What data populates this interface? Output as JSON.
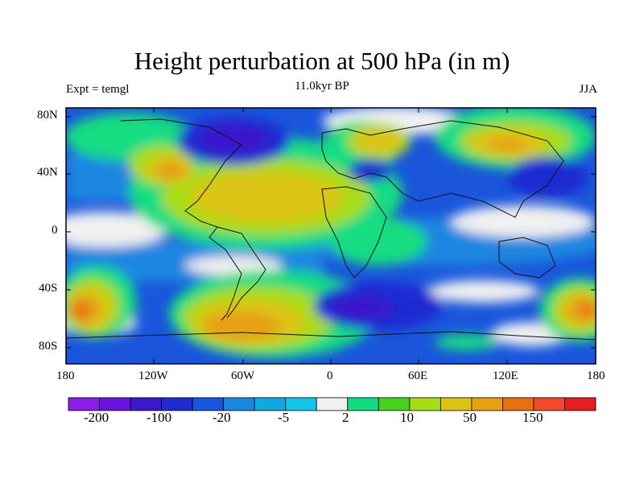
{
  "title": "Height perturbation at 500 hPa (in m)",
  "left_label": "Expt = temgl",
  "center_label": "11.0kyr BP",
  "right_label": "JJA",
  "lat_labels": [
    "80N",
    "40N",
    "0",
    "40S",
    "80S"
  ],
  "lon_labels": [
    "180",
    "120W",
    "60W",
    "0",
    "60E",
    "120E",
    "180"
  ],
  "colorbar": {
    "colors": [
      "#8a1ee6",
      "#6a14e0",
      "#3a18cc",
      "#1e2ad2",
      "#1a56dc",
      "#1b86e0",
      "#10a8e0",
      "#14c4e6",
      "#f0f0f0",
      "#12dc82",
      "#46d21e",
      "#a8dc14",
      "#dcc414",
      "#e6a014",
      "#e67014",
      "#f04a2a",
      "#e41e1e"
    ],
    "tick_labels": [
      "-200",
      "-100",
      "-20",
      "-5",
      "2",
      "10",
      "50",
      "150"
    ]
  }
}
